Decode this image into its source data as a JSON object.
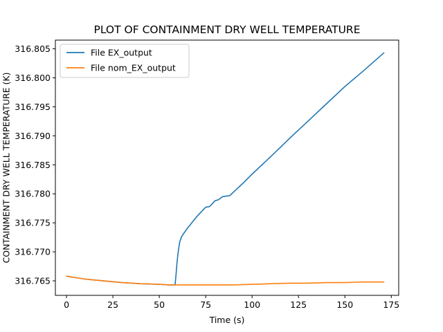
{
  "chart_data": {
    "type": "line",
    "title": "PLOT OF CONTAINMENT DRY WELL TEMPERATURE",
    "xlabel": "Time (s)",
    "ylabel": "CONTAINMENT DRY WELL TEMPERATURE (K)",
    "xlim": [
      -6,
      179
    ],
    "ylim": [
      316.7625,
      316.8065
    ],
    "x_ticks": [
      0,
      25,
      50,
      75,
      100,
      125,
      150,
      175
    ],
    "x_tick_labels": [
      "0",
      "25",
      "50",
      "75",
      "100",
      "125",
      "150",
      "175"
    ],
    "y_ticks": [
      316.765,
      316.77,
      316.775,
      316.78,
      316.785,
      316.79,
      316.795,
      316.8,
      316.805
    ],
    "y_tick_labels": [
      "316.765",
      "316.770",
      "316.775",
      "316.780",
      "316.785",
      "316.790",
      "316.795",
      "316.800",
      "316.805"
    ],
    "grid": false,
    "legend_position": "top-left",
    "series": [
      {
        "name": "File EX_output",
        "color": "#1f77b4",
        "x": [
          0,
          10,
          20,
          30,
          40,
          50,
          55,
          58.5,
          59,
          59.5,
          60,
          60.5,
          61,
          62,
          63,
          65,
          67,
          70,
          72,
          75,
          77,
          78,
          80,
          82,
          84,
          86,
          88,
          90,
          95,
          100,
          110,
          120,
          130,
          140,
          150,
          160,
          171
        ],
        "y": [
          316.7658,
          316.7653,
          316.765,
          316.7647,
          316.7645,
          316.7644,
          316.7643,
          316.7643,
          316.766,
          316.768,
          316.7695,
          316.7707,
          316.7717,
          316.7726,
          316.7731,
          316.774,
          316.7748,
          316.776,
          316.7767,
          316.7777,
          316.7778,
          316.7781,
          316.7788,
          316.779,
          316.7795,
          316.7796,
          316.7797,
          316.7803,
          316.7818,
          316.7834,
          316.7864,
          316.7895,
          316.7925,
          316.7955,
          316.7985,
          316.8012,
          316.8043
        ]
      },
      {
        "name": "File nom_EX_output",
        "color": "#ff7f0e",
        "x": [
          0,
          10,
          20,
          30,
          40,
          50,
          55,
          60,
          70,
          80,
          90,
          100,
          110,
          120,
          130,
          140,
          150,
          160,
          171
        ],
        "y": [
          316.7658,
          316.7653,
          316.765,
          316.7647,
          316.7645,
          316.7644,
          316.7643,
          316.7643,
          316.7643,
          316.7643,
          316.7643,
          316.7644,
          316.7645,
          316.7646,
          316.7646,
          316.7647,
          316.7647,
          316.7648,
          316.7648
        ]
      }
    ]
  }
}
